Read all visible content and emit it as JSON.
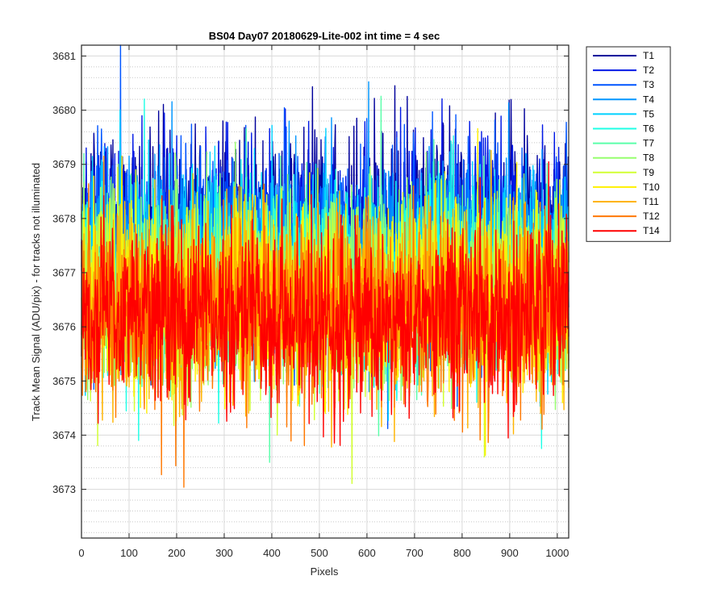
{
  "chart_data": {
    "type": "line",
    "title": "BS04 Day07 20180629-Lite-002 int time = 4 sec",
    "xlabel": "Pixels",
    "ylabel": "Track Mean Signal (ADU/pix) - for tracks not illuminated",
    "xlim": [
      0,
      1024
    ],
    "ylim": [
      3672.1,
      3681.2
    ],
    "xticks": [
      0,
      100,
      200,
      300,
      400,
      500,
      600,
      700,
      800,
      900,
      1000
    ],
    "yticks": [
      3673,
      3674,
      3675,
      3676,
      3677,
      3678,
      3679,
      3680,
      3681
    ],
    "grid": true,
    "minor_grid_y": true,
    "legend_position": "outside-top-right",
    "samples_per_series": 1024,
    "series": [
      {
        "name": "T1",
        "color": "#00009C",
        "mean": 3677.9,
        "spread": 0.85
      },
      {
        "name": "T2",
        "color": "#0018E6",
        "mean": 3677.7,
        "spread": 0.85
      },
      {
        "name": "T3",
        "color": "#0055FF",
        "mean": 3677.5,
        "spread": 0.85
      },
      {
        "name": "T4",
        "color": "#0096FF",
        "mean": 3677.3,
        "spread": 0.85
      },
      {
        "name": "T5",
        "color": "#00D2FF",
        "mean": 3677.1,
        "spread": 0.85
      },
      {
        "name": "T6",
        "color": "#1EFFE6",
        "mean": 3676.9,
        "spread": 0.85
      },
      {
        "name": "T7",
        "color": "#5AFFAA",
        "mean": 3676.8,
        "spread": 0.85
      },
      {
        "name": "T8",
        "color": "#96FF6E",
        "mean": 3676.7,
        "spread": 0.85
      },
      {
        "name": "T9",
        "color": "#D2FF32",
        "mean": 3676.6,
        "spread": 0.85
      },
      {
        "name": "T10",
        "color": "#FFF000",
        "mean": 3676.5,
        "spread": 0.85
      },
      {
        "name": "T11",
        "color": "#FFB400",
        "mean": 3676.4,
        "spread": 0.85
      },
      {
        "name": "T12",
        "color": "#FF7800",
        "mean": 3676.3,
        "spread": 0.85
      },
      {
        "name": "T14",
        "color": "#FF0000",
        "mean": 3676.2,
        "spread": 0.85
      }
    ]
  }
}
